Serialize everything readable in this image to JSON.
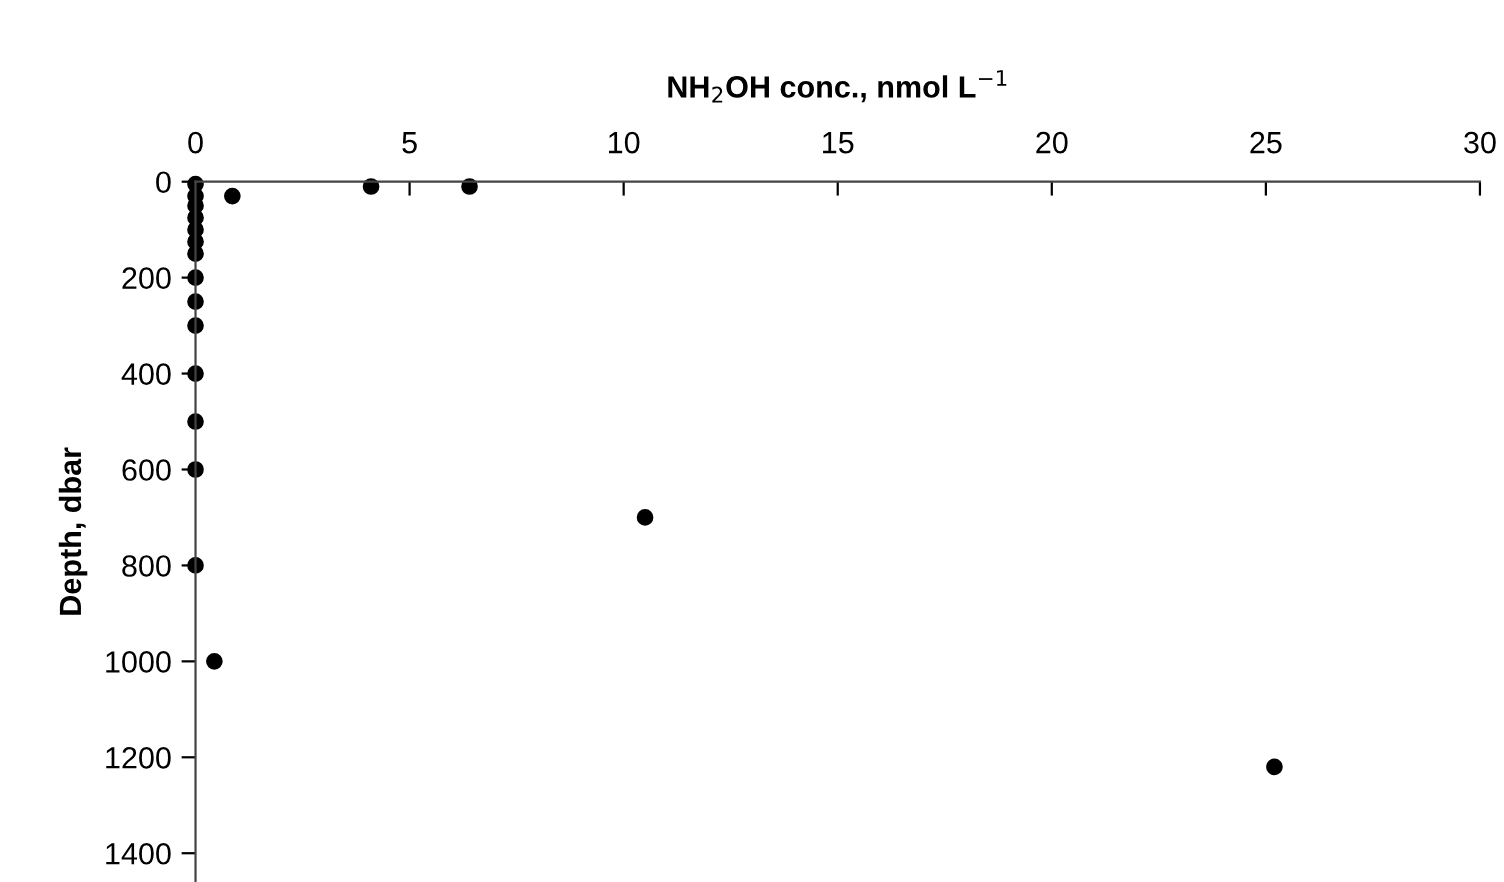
{
  "chart_data": {
    "type": "scatter",
    "xlabel": "NH$_{2}$OH conc., nmol L$^{−1}$",
    "ylabel": "Depth, dbar",
    "x": [
      0,
      0,
      0,
      0,
      0,
      0,
      0,
      0,
      0,
      0,
      0,
      0,
      0,
      0,
      0.44,
      0.86,
      4.1,
      6.4,
      10.5,
      25.2
    ],
    "values": [
      5,
      30,
      50,
      75,
      100,
      125,
      150,
      200,
      250,
      300,
      400,
      500,
      600,
      800,
      1000,
      30,
      10,
      10,
      700,
      1220
    ],
    "color": "#000000",
    "marker": "circle",
    "xlim": [
      0,
      30
    ],
    "xticks": [
      0,
      5,
      10,
      15,
      20,
      25,
      30
    ],
    "ylim": [
      1460,
      0
    ],
    "yticks": [
      0,
      200,
      400,
      600,
      800,
      1000,
      1200,
      1400
    ],
    "grid": false,
    "legend": false
  }
}
